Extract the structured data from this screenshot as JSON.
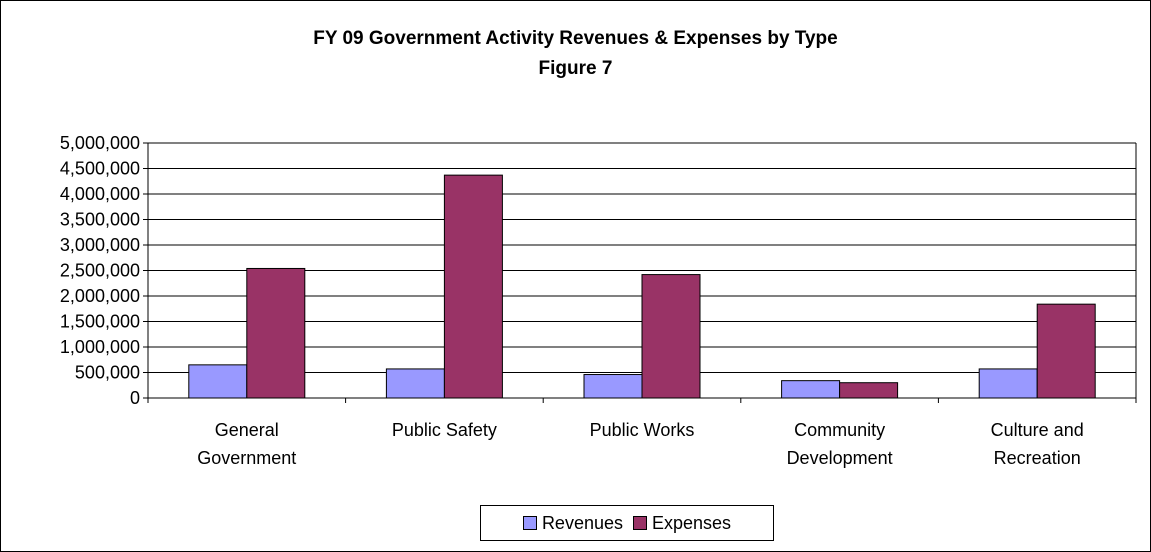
{
  "chart_data": {
    "type": "bar",
    "title": "FY 09 Government Activity Revenues & Expenses by Type",
    "subtitle": "Figure 7",
    "categories": [
      [
        "General",
        "Government"
      ],
      [
        "Public Safety"
      ],
      [
        "Public Works"
      ],
      [
        "Community",
        "Development"
      ],
      [
        "Culture and",
        "Recreation"
      ]
    ],
    "series": [
      {
        "name": "Revenues",
        "color": "#9999ff",
        "values": [
          650000,
          570000,
          460000,
          340000,
          570000
        ]
      },
      {
        "name": "Expenses",
        "color": "#993366",
        "values": [
          2540000,
          4370000,
          2420000,
          300000,
          1840000
        ]
      }
    ],
    "ylim": [
      0,
      5000000
    ],
    "yticks": [
      "0",
      "500,000",
      "1,000,000",
      "1,500,000",
      "2,000,000",
      "2,500,000",
      "3,000,000",
      "3,500,000",
      "4,000,000",
      "4,500,000",
      "5,000,000"
    ],
    "grid": true,
    "legend": "bottom"
  }
}
